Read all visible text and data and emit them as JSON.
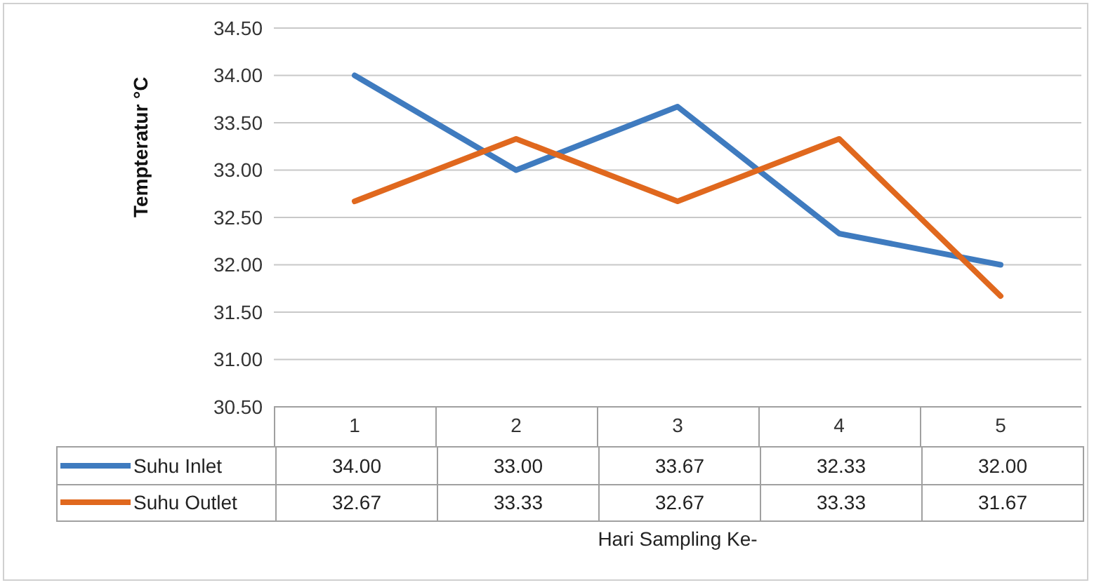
{
  "chart_data": {
    "type": "line",
    "ylabel": "Tempteratur °C",
    "xlabel": "Hari Sampling Ke-",
    "categories": [
      "1",
      "2",
      "3",
      "4",
      "5"
    ],
    "series": [
      {
        "name": "Suhu Inlet",
        "color": "#3f7bbf",
        "values": [
          34.0,
          33.0,
          33.67,
          32.33,
          32.0
        ],
        "value_labels": [
          "34.00",
          "33.00",
          "33.67",
          "32.33",
          "32.00"
        ]
      },
      {
        "name": "Suhu Outlet",
        "color": "#e0681e",
        "values": [
          32.67,
          33.33,
          32.67,
          33.33,
          31.67
        ],
        "value_labels": [
          "32.67",
          "33.33",
          "32.67",
          "33.33",
          "31.67"
        ]
      }
    ],
    "ylim": [
      30.5,
      34.5
    ],
    "yticks": [
      {
        "value": 30.5,
        "label": "30.50"
      },
      {
        "value": 31,
        "label": "31.00"
      },
      {
        "value": 31.5,
        "label": "31.50"
      },
      {
        "value": 32,
        "label": "32.00"
      },
      {
        "value": 32.5,
        "label": "32.50"
      },
      {
        "value": 33,
        "label": "33.00"
      },
      {
        "value": 33.5,
        "label": "33.50"
      },
      {
        "value": 34,
        "label": "34.00"
      },
      {
        "value": 34.5,
        "label": "34.50"
      }
    ],
    "grid": "y",
    "legend": "bottom",
    "marker": "none",
    "line_style": "solid"
  }
}
